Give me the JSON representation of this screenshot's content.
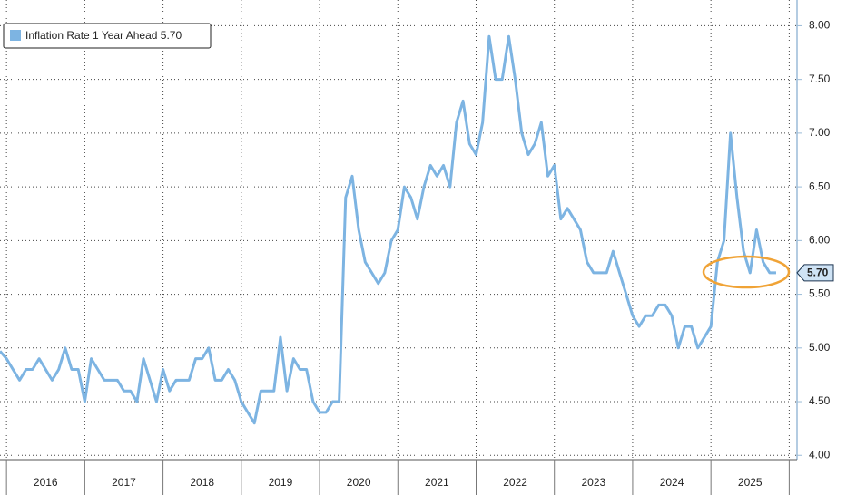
{
  "chart_data": {
    "type": "line",
    "x": [
      2015.917,
      2016.0,
      2016.083,
      2016.167,
      2016.25,
      2016.333,
      2016.417,
      2016.5,
      2016.583,
      2016.667,
      2016.75,
      2016.833,
      2016.917,
      2017.0,
      2017.083,
      2017.167,
      2017.25,
      2017.333,
      2017.417,
      2017.5,
      2017.583,
      2017.667,
      2017.75,
      2017.833,
      2017.917,
      2018.0,
      2018.083,
      2018.167,
      2018.25,
      2018.333,
      2018.417,
      2018.5,
      2018.583,
      2018.667,
      2018.75,
      2018.833,
      2018.917,
      2019.0,
      2019.083,
      2019.167,
      2019.25,
      2019.333,
      2019.417,
      2019.5,
      2019.583,
      2019.667,
      2019.75,
      2019.833,
      2019.917,
      2020.0,
      2020.083,
      2020.167,
      2020.25,
      2020.333,
      2020.417,
      2020.5,
      2020.583,
      2020.667,
      2020.75,
      2020.833,
      2020.917,
      2021.0,
      2021.083,
      2021.167,
      2021.25,
      2021.333,
      2021.417,
      2021.5,
      2021.583,
      2021.667,
      2021.75,
      2021.833,
      2021.917,
      2022.0,
      2022.083,
      2022.167,
      2022.25,
      2022.333,
      2022.417,
      2022.5,
      2022.583,
      2022.667,
      2022.75,
      2022.833,
      2022.917,
      2023.0,
      2023.083,
      2023.167,
      2023.25,
      2023.333,
      2023.417,
      2023.5,
      2023.583,
      2023.667,
      2023.75,
      2023.833,
      2023.917,
      2024.0,
      2024.083,
      2024.167,
      2024.25,
      2024.333,
      2024.417,
      2024.5,
      2024.583,
      2024.667,
      2024.75,
      2024.833,
      2024.917,
      2025.0,
      2025.083,
      2025.167,
      2025.25,
      2025.333,
      2025.417,
      2025.5,
      2025.583,
      2025.667,
      2025.75,
      2025.833
    ],
    "series": [
      {
        "name": "Inflation Rate 1 Year Ahead",
        "color": "#7db4e2",
        "values": [
          4.97,
          4.9,
          4.8,
          4.7,
          4.8,
          4.8,
          4.9,
          4.8,
          4.7,
          4.8,
          5.0,
          4.8,
          4.8,
          4.5,
          4.9,
          4.8,
          4.7,
          4.7,
          4.7,
          4.6,
          4.6,
          4.5,
          4.9,
          4.7,
          4.5,
          4.8,
          4.6,
          4.7,
          4.7,
          4.7,
          4.9,
          4.9,
          5.0,
          4.7,
          4.7,
          4.8,
          4.7,
          4.5,
          4.4,
          4.3,
          4.6,
          4.6,
          4.6,
          5.1,
          4.6,
          4.9,
          4.8,
          4.8,
          4.5,
          4.4,
          4.4,
          4.5,
          4.5,
          6.4,
          6.6,
          6.1,
          5.8,
          5.7,
          5.6,
          5.7,
          6.0,
          6.1,
          6.5,
          6.4,
          6.2,
          6.5,
          6.7,
          6.6,
          6.7,
          6.5,
          7.1,
          7.3,
          6.9,
          6.8,
          7.1,
          7.9,
          7.5,
          7.5,
          7.9,
          7.5,
          7.0,
          6.8,
          6.9,
          7.1,
          6.6,
          6.7,
          6.2,
          6.3,
          6.2,
          6.1,
          5.8,
          5.7,
          5.7,
          5.7,
          5.9,
          5.7,
          5.5,
          5.3,
          5.2,
          5.3,
          5.3,
          5.4,
          5.4,
          5.3,
          5.0,
          5.2,
          5.2,
          5.0,
          5.1,
          5.2,
          5.8,
          6.0,
          7.0,
          6.4,
          5.9,
          5.7,
          6.1,
          5.8,
          5.7,
          5.7
        ]
      }
    ],
    "current_value": {
      "value": 5.7,
      "label": "5.70"
    },
    "xlim": [
      2015.917,
      2026.1
    ],
    "xticks": [
      2016,
      2017,
      2018,
      2019,
      2020,
      2021,
      2022,
      2023,
      2024,
      2025,
      2026
    ],
    "xlabels": [
      {
        "value": 2016.5,
        "label": "2016"
      },
      {
        "value": 2017.5,
        "label": "2017"
      },
      {
        "value": 2018.5,
        "label": "2018"
      },
      {
        "value": 2019.5,
        "label": "2019"
      },
      {
        "value": 2020.5,
        "label": "2020"
      },
      {
        "value": 2021.5,
        "label": "2021"
      },
      {
        "value": 2022.5,
        "label": "2022"
      },
      {
        "value": 2023.5,
        "label": "2023"
      },
      {
        "value": 2024.5,
        "label": "2024"
      },
      {
        "value": 2025.5,
        "label": "2025"
      }
    ],
    "ylim": [
      3.96,
      8.24
    ],
    "yticks": [
      {
        "value": 4,
        "label": "4.00"
      },
      {
        "value": 4.5,
        "label": "4.50"
      },
      {
        "value": 5,
        "label": "5.00"
      },
      {
        "value": 5.5,
        "label": "5.50"
      },
      {
        "value": 6,
        "label": "6.00"
      },
      {
        "value": 6.5,
        "label": "6.50"
      },
      {
        "value": 7,
        "label": "7.00"
      },
      {
        "value": 7.5,
        "label": "7.50"
      },
      {
        "value": 8,
        "label": "8.00"
      }
    ],
    "grid": true,
    "legend": "top-left"
  }
}
